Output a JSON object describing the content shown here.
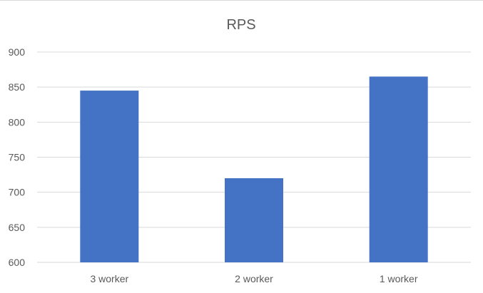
{
  "chart_data": {
    "type": "bar",
    "title": "RPS",
    "categories": [
      "3 worker",
      "2 worker",
      "1 worker"
    ],
    "values": [
      845,
      720,
      865
    ],
    "ylim": [
      600,
      900
    ],
    "yticks": [
      600,
      650,
      700,
      750,
      800,
      850,
      900
    ],
    "grid": true,
    "legend": "none",
    "bar_color": "#4472C4",
    "grid_color": "#D9D9D9",
    "text_color": "#595959"
  }
}
